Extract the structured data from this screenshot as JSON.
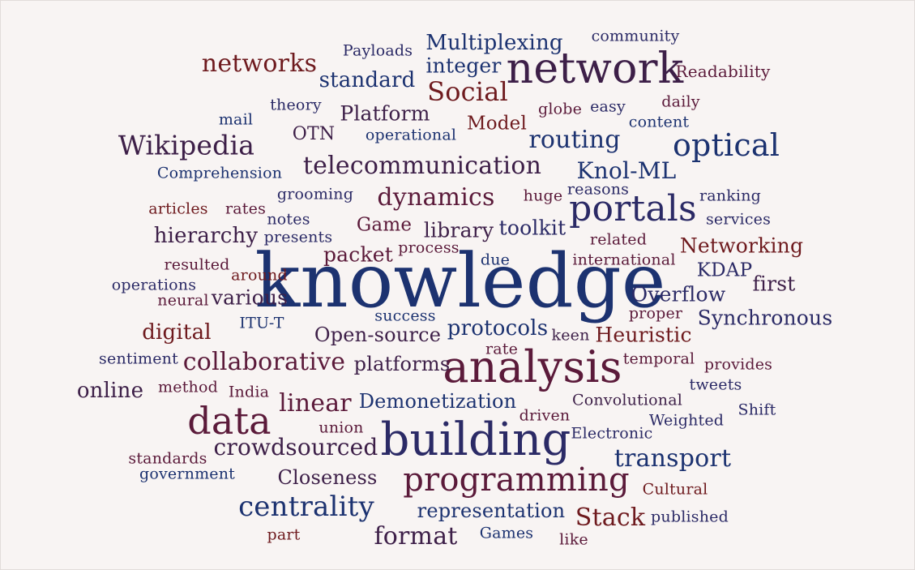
{
  "word_cloud": {
    "background": "#f8f4f3",
    "colors": {
      "navy": "#1c3270",
      "crimson": "#6e1a1e",
      "plum": "#3d1f48",
      "indigo": "#2b2a66",
      "wine": "#5b1a3a"
    },
    "words": [
      {
        "text": "knowledge"
      },
      {
        "text": "analysis"
      },
      {
        "text": "building"
      },
      {
        "text": "network"
      },
      {
        "text": "portals"
      },
      {
        "text": "data"
      },
      {
        "text": "programming"
      },
      {
        "text": "optical"
      },
      {
        "text": "centrality"
      },
      {
        "text": "Wikipedia"
      },
      {
        "text": "telecommunication"
      },
      {
        "text": "collaborative"
      },
      {
        "text": "crowdsourced"
      },
      {
        "text": "Social"
      },
      {
        "text": "dynamics"
      },
      {
        "text": "routing"
      },
      {
        "text": "Knol-ML"
      },
      {
        "text": "transport"
      },
      {
        "text": "format"
      },
      {
        "text": "linear"
      },
      {
        "text": "networks"
      },
      {
        "text": "Stack"
      },
      {
        "text": "Multiplexing"
      },
      {
        "text": "protocols"
      },
      {
        "text": "representation"
      },
      {
        "text": "Demonetization"
      },
      {
        "text": "platforms"
      },
      {
        "text": "hierarchy"
      },
      {
        "text": "Networking"
      },
      {
        "text": "Synchronous"
      },
      {
        "text": "Overflow"
      },
      {
        "text": "Heuristic"
      },
      {
        "text": "integer"
      },
      {
        "text": "standard"
      },
      {
        "text": "Platform"
      },
      {
        "text": "library"
      },
      {
        "text": "toolkit"
      },
      {
        "text": "Open-source"
      },
      {
        "text": "Closeness"
      },
      {
        "text": "digital"
      },
      {
        "text": "online"
      },
      {
        "text": "various"
      },
      {
        "text": "packet"
      },
      {
        "text": "Game"
      },
      {
        "text": "Model"
      },
      {
        "text": "first"
      },
      {
        "text": "KDAP"
      },
      {
        "text": "OTN"
      },
      {
        "text": "Readability"
      },
      {
        "text": "community"
      },
      {
        "text": "Payloads"
      },
      {
        "text": "theory"
      },
      {
        "text": "mail"
      },
      {
        "text": "operational"
      },
      {
        "text": "globe"
      },
      {
        "text": "easy"
      },
      {
        "text": "daily"
      },
      {
        "text": "content"
      },
      {
        "text": "Comprehension"
      },
      {
        "text": "grooming"
      },
      {
        "text": "huge"
      },
      {
        "text": "reasons"
      },
      {
        "text": "ranking"
      },
      {
        "text": "services"
      },
      {
        "text": "articles"
      },
      {
        "text": "rates"
      },
      {
        "text": "notes"
      },
      {
        "text": "presents"
      },
      {
        "text": "related"
      },
      {
        "text": "process"
      },
      {
        "text": "resulted"
      },
      {
        "text": "around"
      },
      {
        "text": "due"
      },
      {
        "text": "international"
      },
      {
        "text": "operations"
      },
      {
        "text": "neural"
      },
      {
        "text": "success"
      },
      {
        "text": "proper"
      },
      {
        "text": "ITU-T"
      },
      {
        "text": "keen"
      },
      {
        "text": "sentiment"
      },
      {
        "text": "rate"
      },
      {
        "text": "temporal"
      },
      {
        "text": "provides"
      },
      {
        "text": "method"
      },
      {
        "text": "India"
      },
      {
        "text": "tweets"
      },
      {
        "text": "Convolutional"
      },
      {
        "text": "Shift"
      },
      {
        "text": "driven"
      },
      {
        "text": "Weighted"
      },
      {
        "text": "union"
      },
      {
        "text": "Electronic"
      },
      {
        "text": "standards"
      },
      {
        "text": "government"
      },
      {
        "text": "Cultural"
      },
      {
        "text": "published"
      },
      {
        "text": "part"
      },
      {
        "text": "Games"
      },
      {
        "text": "like"
      }
    ]
  }
}
